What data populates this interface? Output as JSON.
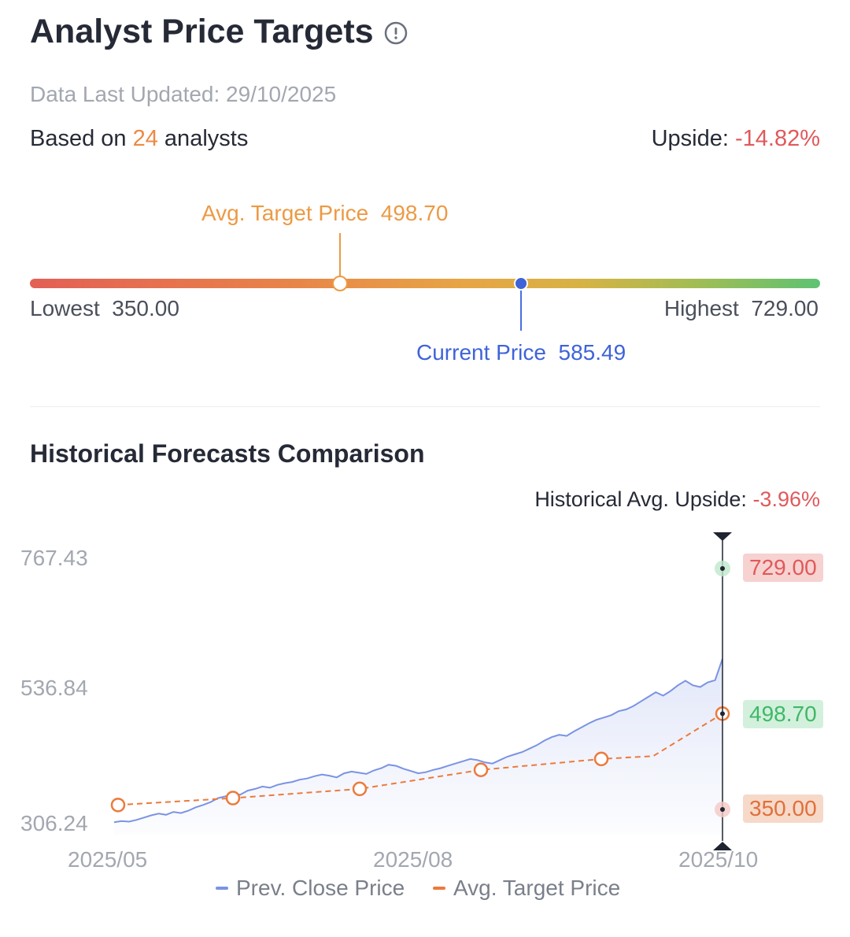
{
  "header": {
    "title": "Analyst Price Targets",
    "data_updated": "Data Last Updated: 29/10/2025",
    "based_on_prefix": "Based on ",
    "analyst_count": "24",
    "based_on_suffix": " analysts",
    "upside_label": "Upside: ",
    "upside_value": "-14.82%"
  },
  "range": {
    "avg_label": "Avg. Target Price",
    "avg_value": "498.70",
    "current_label": "Current Price",
    "current_value": "585.49",
    "lowest_label": "Lowest",
    "lowest_value": "350.00",
    "highest_label": "Highest",
    "highest_value": "729.00",
    "min": 350.0,
    "max": 729.0,
    "avg": 498.7,
    "current": 585.49
  },
  "history": {
    "title": "Historical Forecasts Comparison",
    "upside_label": "Historical Avg. Upside: ",
    "upside_value": "-3.96%",
    "high_pill": "729.00",
    "avg_pill": "498.70",
    "low_pill": "350.00"
  },
  "legend": {
    "close": "Prev. Close Price",
    "target": "Avg. Target Price"
  },
  "colors": {
    "close_line": "#7b93e3",
    "target_line": "#ec7a3c",
    "current": "#3f63d8",
    "negative": "#e0595b",
    "accent_orange": "#ec8a45",
    "positive": "#3fb868"
  },
  "chart_data": {
    "type": "line",
    "title": "Historical Forecasts Comparison",
    "xlabel": "",
    "ylabel": "",
    "x_ticks": [
      "2025/05",
      "2025/08",
      "2025/10"
    ],
    "y_ticks": [
      "767.43",
      "536.84",
      "306.24"
    ],
    "ylim": [
      306.24,
      767.43
    ],
    "series": [
      {
        "name": "Prev. Close Price",
        "values": [
          310,
          312,
          311,
          314,
          318,
          322,
          325,
          323,
          328,
          326,
          330,
          336,
          340,
          345,
          352,
          355,
          360,
          358,
          365,
          368,
          372,
          370,
          375,
          378,
          380,
          384,
          386,
          390,
          393,
          391,
          388,
          395,
          398,
          396,
          394,
          400,
          404,
          410,
          408,
          403,
          399,
          395,
          397,
          401,
          404,
          408,
          412,
          416,
          420,
          418,
          414,
          412,
          418,
          424,
          428,
          432,
          438,
          444,
          452,
          458,
          462,
          460,
          468,
          475,
          482,
          488,
          492,
          496,
          503,
          506,
          512,
          520,
          528,
          536,
          530,
          538,
          548,
          556,
          548,
          545,
          553,
          557,
          594
        ]
      },
      {
        "name": "Avg. Target Price",
        "values": [
          340,
          352,
          368,
          401,
          420,
          425,
          498.7
        ]
      }
    ]
  }
}
